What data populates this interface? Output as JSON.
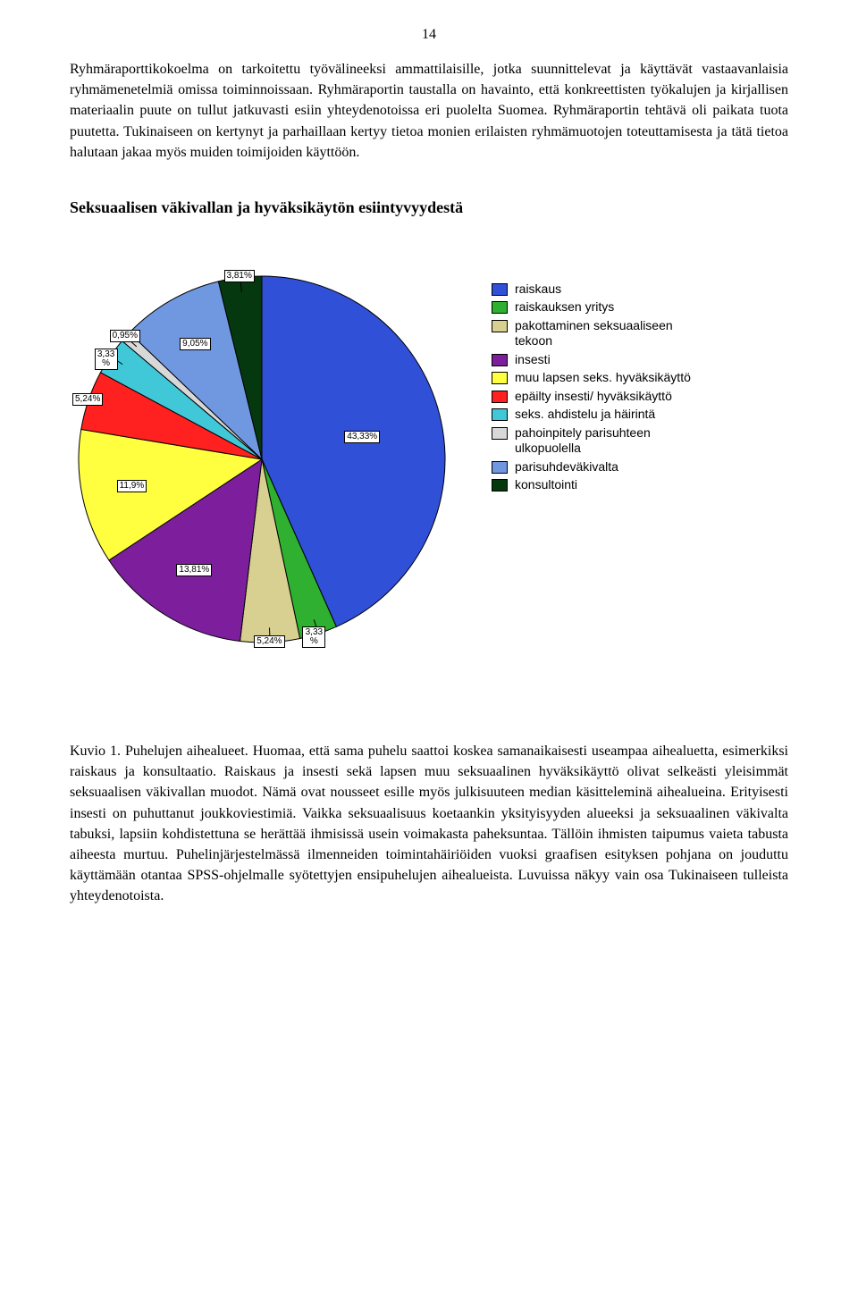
{
  "page_number": "14",
  "paragraph1": "Ryhmäraporttikokoelma on tarkoitettu työvälineeksi ammattilaisille, jotka suunnittelevat ja käyttävät vastaavanlaisia ryhmämenetelmiä omissa toiminnoissaan. Ryhmäraportin taustalla on havainto, että konkreettisten työkalujen ja kirjallisen materiaalin puute on tullut jatkuvasti esiin yhteydenotoissa eri puolelta Suomea. Ryhmäraportin tehtävä oli paikata tuota puutetta. Tukinaiseen on kertynyt ja parhaillaan kertyy tietoa monien erilaisten ryhmämuotojen toteuttamisesta ja tätä tietoa halutaan jakaa myös muiden toimijoiden käyttöön.",
  "section_title": "Seksuaalisen väkivallan ja hyväksikäytön esiintyvyydestä",
  "paragraph2": "Kuvio 1. Puhelujen aihealueet. Huomaa, että sama puhelu saattoi koskea samanaikaisesti useampaa aihealuetta, esimerkiksi raiskaus ja konsultaatio. Raiskaus ja insesti sekä lapsen muu seksuaalinen hyväksikäyttö olivat selkeästi yleisimmät seksuaalisen väkivallan muodot. Nämä ovat nousseet esille myös julkisuuteen median käsitteleminä aihealueina. Erityisesti insesti on puhuttanut joukkoviestimiä. Vaikka seksuaalisuus koetaankin yksityisyyden alueeksi ja seksuaalinen väkivalta tabuksi, lapsiin kohdistettuna se herättää ihmisissä usein voimakasta paheksuntaa. Tällöin ihmisten taipumus vaieta tabusta aiheesta murtuu. Puhelinjärjestelmässä ilmenneiden toimintahäiriöiden vuoksi graafisen esityksen pohjana on jouduttu käyttämään otantaa SPSS-ohjelmalle syötettyjen ensipuhelujen aihealueista. Luvuissa näkyy vain osa Tukinaiseen tulleista yhteydenotoista.",
  "pie": {
    "type": "pie",
    "background_color": "#ffffff",
    "label_fontsize": 10,
    "label_border_color": "#000000",
    "label_background": "#ffffff",
    "stroke_color": "#000000",
    "stroke_width": 1,
    "slices": [
      {
        "label": "raiskaus",
        "value": 43.33,
        "display": "43,33%",
        "color": "#3050d8"
      },
      {
        "label": "raiskauksen yritys",
        "value": 3.33,
        "display": "3,33\n%",
        "color": "#2fb030"
      },
      {
        "label": "pakottaminen seksuaaliseen tekoon",
        "value": 5.24,
        "display": "5,24%",
        "color": "#d8d090"
      },
      {
        "label": "insesti",
        "value": 13.81,
        "display": "13,81%",
        "color": "#7d1f9c"
      },
      {
        "label": "muu lapsen seks. hyväksikäyttö",
        "value": 11.9,
        "display": "11,9%",
        "color": "#ffff40"
      },
      {
        "label": "epäilty insesti/ hyväksikäyttö",
        "value": 5.24,
        "display": "5,24%",
        "color": "#ff2020"
      },
      {
        "label": "seks. ahdistelu ja häirintä",
        "value": 3.33,
        "display": "3,33\n%",
        "color": "#40c8d8"
      },
      {
        "label": "pahoinpitely parisuhteen ulkopuolella",
        "value": 0.95,
        "display": "0,95%",
        "color": "#d8d8d8"
      },
      {
        "label": "parisuhdeväkivalta",
        "value": 9.05,
        "display": "9,05%",
        "color": "#7098e0"
      },
      {
        "label": "konsultointi",
        "value": 3.81,
        "display": "3,81%",
        "color": "#063810"
      }
    ]
  },
  "legend": {
    "fontsize": 14,
    "font_family": "Arial",
    "swatch_border": "#000000",
    "items": [
      {
        "color": "#3050d8",
        "text": "raiskaus"
      },
      {
        "color": "#2fb030",
        "text": "raiskauksen yritys"
      },
      {
        "color": "#d8d090",
        "text": "pakottaminen seksuaaliseen tekoon"
      },
      {
        "color": "#7d1f9c",
        "text": "insesti"
      },
      {
        "color": "#ffff40",
        "text": "muu lapsen seks. hyväksikäyttö"
      },
      {
        "color": "#ff2020",
        "text": "epäilty insesti/ hyväksikäyttö"
      },
      {
        "color": "#40c8d8",
        "text": "seks. ahdistelu ja häirintä"
      },
      {
        "color": "#d8d8d8",
        "text": "pahoinpitely parisuhteen ulkopuolella"
      },
      {
        "color": "#7098e0",
        "text": "parisuhdeväkivalta"
      },
      {
        "color": "#063810",
        "text": "konsultointi"
      }
    ]
  }
}
